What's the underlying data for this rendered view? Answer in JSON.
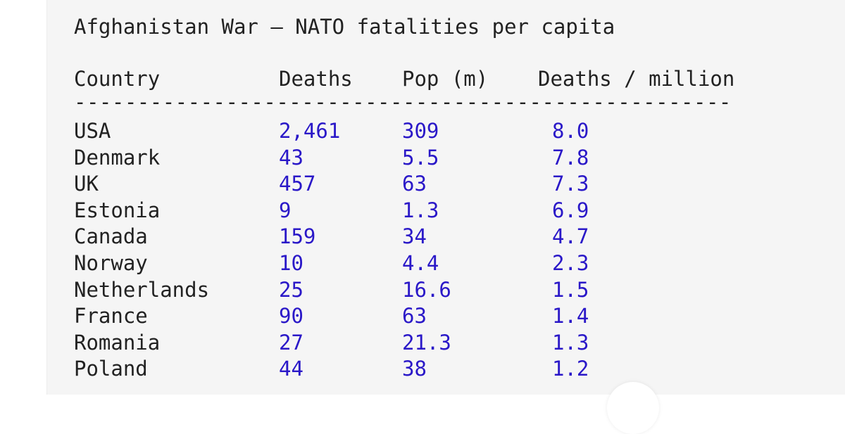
{
  "title": "Afghanistan War — NATO fatalities per capita",
  "headers": {
    "country": "Country",
    "deaths": "Deaths",
    "pop": "Pop (m)",
    "deaths_per_million": "Deaths / million"
  },
  "rule": "----------------------------------------------------",
  "rows": [
    {
      "country": "USA",
      "deaths": "2,461",
      "pop": "309",
      "dpm": "8.0"
    },
    {
      "country": "Denmark",
      "deaths": "43",
      "pop": "5.5",
      "dpm": "7.8"
    },
    {
      "country": "UK",
      "deaths": "457",
      "pop": "63",
      "dpm": "7.3"
    },
    {
      "country": "Estonia",
      "deaths": "9",
      "pop": "1.3",
      "dpm": "6.9"
    },
    {
      "country": "Canada",
      "deaths": "159",
      "pop": "34",
      "dpm": "4.7"
    },
    {
      "country": "Norway",
      "deaths": "10",
      "pop": "4.4",
      "dpm": "2.3"
    },
    {
      "country": "Netherlands",
      "deaths": "25",
      "pop": "16.6",
      "dpm": "1.5"
    },
    {
      "country": "France",
      "deaths": "90",
      "pop": "63",
      "dpm": "1.4"
    },
    {
      "country": "Romania",
      "deaths": "27",
      "pop": "21.3",
      "dpm": "1.3"
    },
    {
      "country": "Poland",
      "deaths": "44",
      "pop": "38",
      "dpm": "1.2"
    }
  ],
  "colors": {
    "text": "#222222",
    "value": "#2a18c8",
    "background": "#f5f5f5"
  }
}
